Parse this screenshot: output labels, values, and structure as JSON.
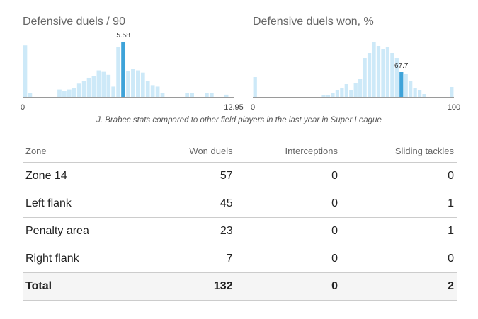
{
  "caption": "J. Brabec stats compared to other field players in the last year in Super League",
  "colors": {
    "bar": "#cde9f8",
    "highlight": "#3ea3d9",
    "axis": "#9a9a9a"
  },
  "chart_data": [
    {
      "type": "bar",
      "title": "Defensive duels / 90",
      "xlim": [
        0,
        12.95
      ],
      "x_tick_labels": [
        "0",
        "12.95"
      ],
      "bin_heights": [
        70,
        5,
        0,
        0,
        0,
        0,
        0,
        10,
        8,
        10,
        12,
        18,
        22,
        26,
        28,
        36,
        34,
        30,
        14,
        68,
        75,
        35,
        38,
        36,
        33,
        22,
        16,
        14,
        5,
        0,
        0,
        0,
        0,
        5,
        5,
        0,
        0,
        5,
        5,
        0,
        0,
        3,
        0
      ],
      "highlight_bin": 20,
      "player_value": "5.58"
    },
    {
      "type": "bar",
      "title": "Defensive duels won, %",
      "xlim": [
        0,
        100
      ],
      "x_tick_labels": [
        "0",
        "100"
      ],
      "bin_heights": [
        28,
        0,
        0,
        0,
        0,
        0,
        0,
        0,
        0,
        0,
        0,
        0,
        0,
        0,
        0,
        3,
        3,
        5,
        10,
        12,
        18,
        10,
        20,
        25,
        55,
        62,
        78,
        72,
        68,
        70,
        62,
        55,
        35,
        33,
        22,
        12,
        10,
        4,
        0,
        0,
        0,
        0,
        0,
        14
      ],
      "highlight_bin": 32,
      "player_value": "67.7"
    }
  ],
  "table": {
    "headers": [
      "Zone",
      "Won duels",
      "Interceptions",
      "Sliding tackles"
    ],
    "rows": [
      [
        "Zone 14",
        "57",
        "0",
        "0"
      ],
      [
        "Left flank",
        "45",
        "0",
        "1"
      ],
      [
        "Penalty area",
        "23",
        "0",
        "1"
      ],
      [
        "Right flank",
        "7",
        "0",
        "0"
      ]
    ],
    "total": [
      "Total",
      "132",
      "0",
      "2"
    ]
  }
}
